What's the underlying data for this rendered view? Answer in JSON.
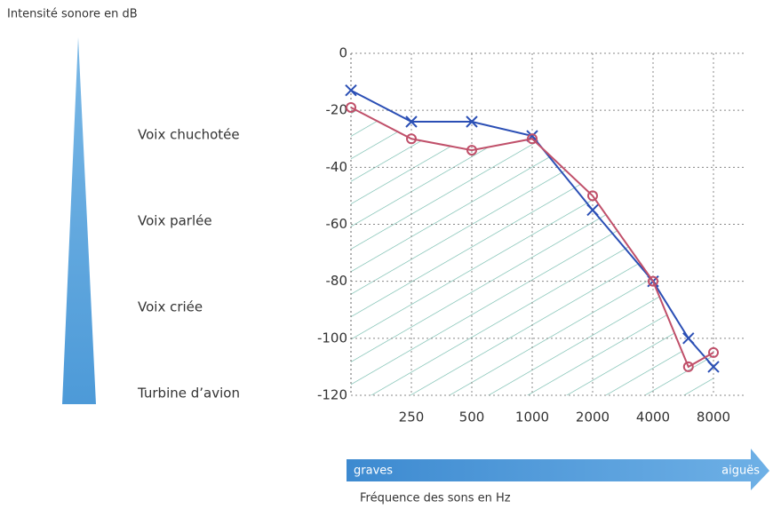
{
  "chart_data": {
    "type": "line",
    "y_label": "Intensité sonore en dB",
    "x_label": "Fréquence des sons en Hz",
    "scale_labels": [
      "Voix chuchotée",
      "Voix parlée",
      "Voix criée",
      "Turbine d’avion"
    ],
    "arrow_labels": [
      "graves",
      "aiguës"
    ],
    "x": [
      125,
      250,
      500,
      1000,
      2000,
      4000,
      6000,
      8000
    ],
    "xscale": "log",
    "xlim": [
      125,
      8000
    ],
    "xticks": [
      250,
      500,
      1000,
      2000,
      4000,
      8000
    ],
    "ylim": [
      -120,
      0
    ],
    "yticks": [
      0,
      -20,
      -40,
      -60,
      -80,
      -100,
      -120
    ],
    "grid": true,
    "series": [
      {
        "color": "#2b4fb5",
        "marker": "x",
        "values": [
          -13,
          -24,
          -24,
          -29,
          -55,
          -80,
          -100,
          -110
        ]
      },
      {
        "color": "#c0506a",
        "marker": "o",
        "values": [
          -19,
          -30,
          -34,
          -30,
          -50,
          -80,
          -110,
          -105
        ]
      }
    ]
  }
}
